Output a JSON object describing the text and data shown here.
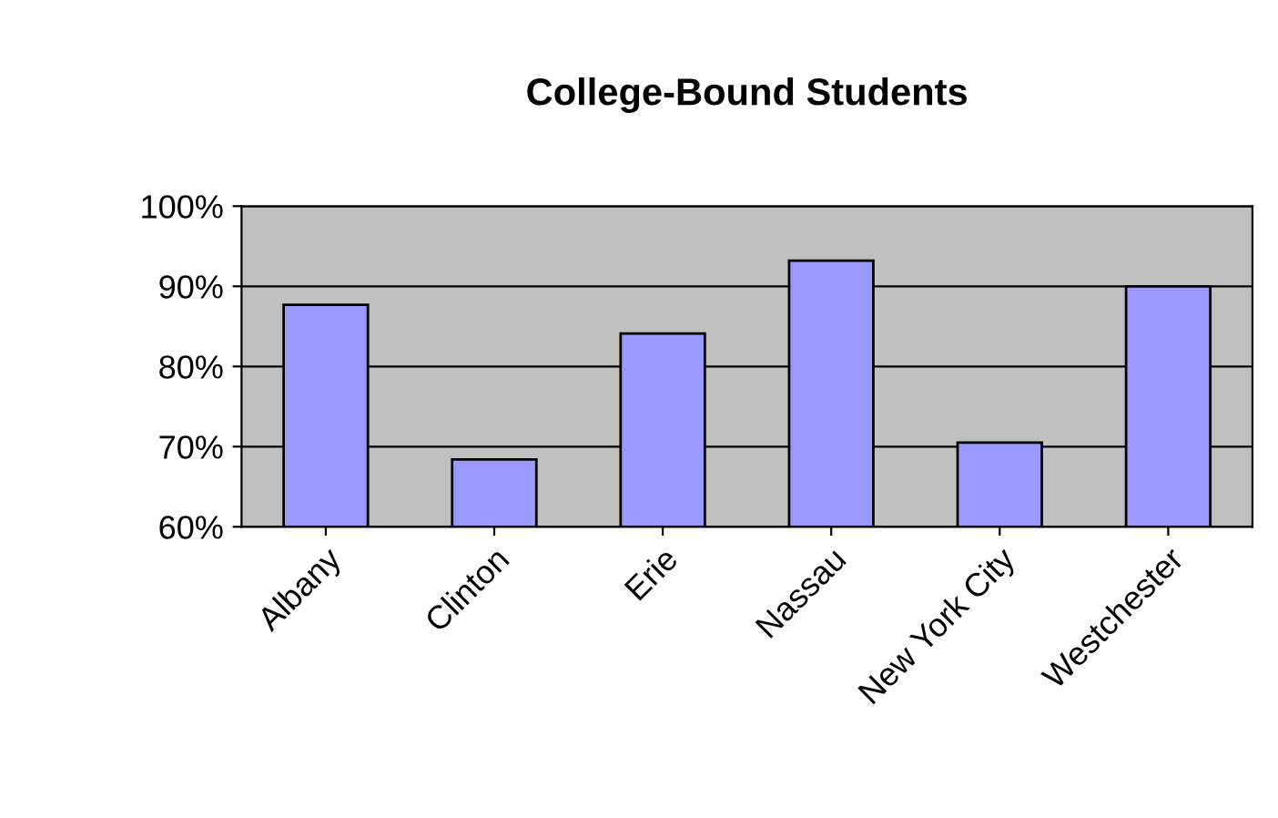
{
  "chart_data": {
    "type": "bar",
    "title": "College-Bound Students",
    "categories": [
      "Albany",
      "Clinton",
      "Erie",
      "Nassau",
      "New York City",
      "Westchester"
    ],
    "values": [
      87.7,
      68.4,
      84.1,
      93.2,
      70.5,
      90.0
    ],
    "color": "#9999ff",
    "ylim": [
      60,
      100
    ],
    "yticks": [
      {
        "value": 60,
        "label": "60%"
      },
      {
        "value": 70,
        "label": "70%"
      },
      {
        "value": 80,
        "label": "80%"
      },
      {
        "value": 90,
        "label": "90%"
      },
      {
        "value": 100,
        "label": "100%"
      }
    ],
    "grid": "y"
  }
}
